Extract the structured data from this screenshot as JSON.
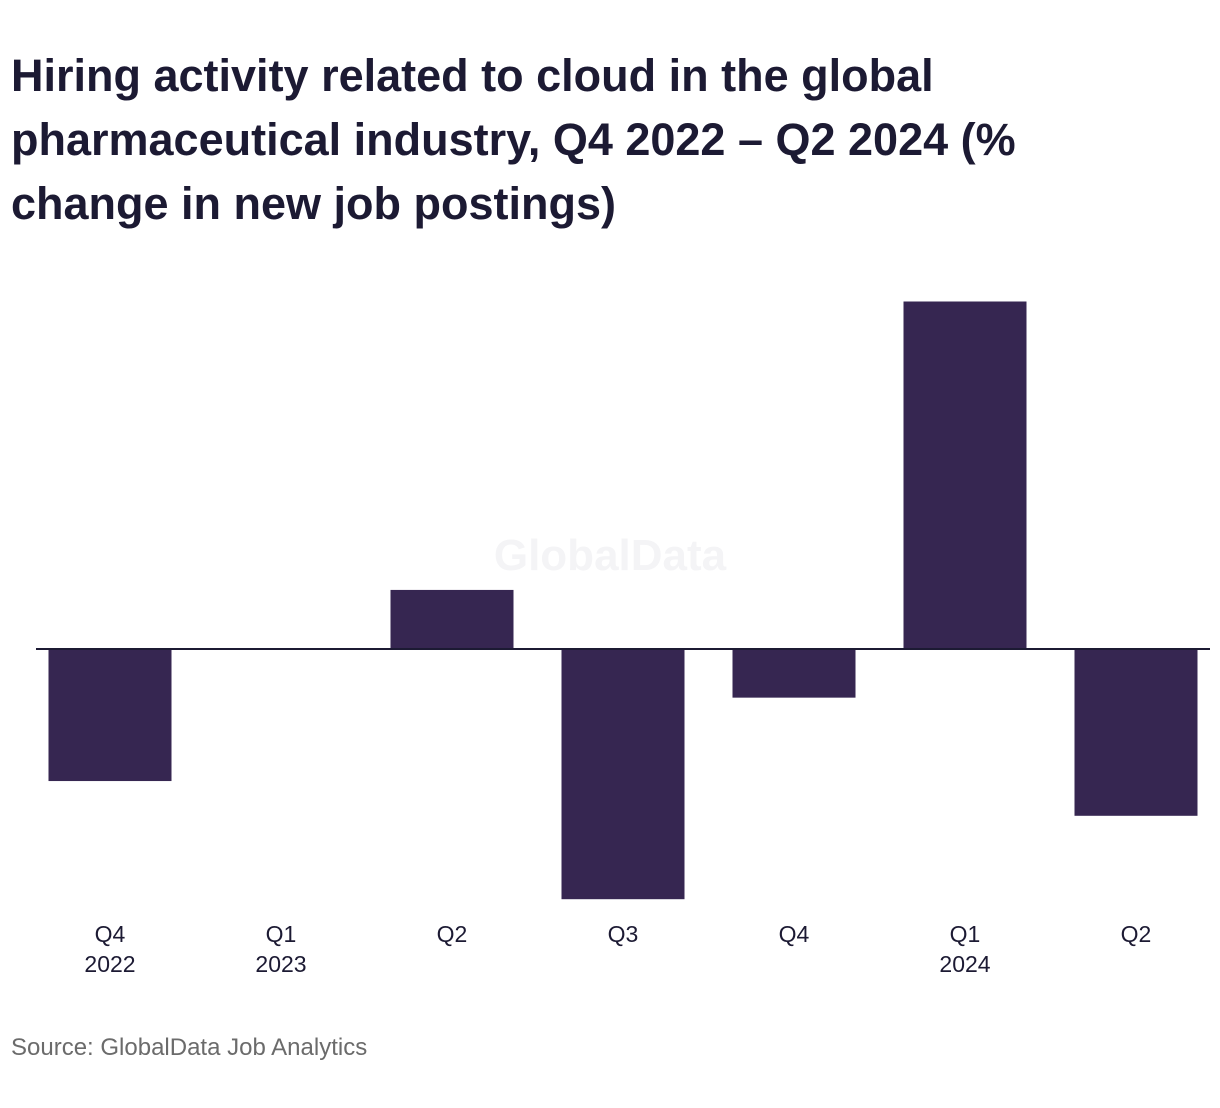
{
  "chart_data": {
    "type": "bar",
    "title": "Hiring activity related to cloud in the global pharmaceutical industry, Q4 2022 – Q2 2024 (% change in new job postings)",
    "categories": [
      {
        "quarter": "Q4",
        "year": "2022"
      },
      {
        "quarter": "Q1",
        "year": "2023"
      },
      {
        "quarter": "Q2",
        "year": ""
      },
      {
        "quarter": "Q3",
        "year": ""
      },
      {
        "quarter": "Q4",
        "year": ""
      },
      {
        "quarter": "Q1",
        "year": "2024"
      },
      {
        "quarter": "Q2",
        "year": ""
      }
    ],
    "values": [
      -19,
      0,
      8.5,
      -36,
      -7,
      50,
      -24
    ],
    "ylim": [
      -40,
      55
    ],
    "xlabel": "",
    "ylabel": "",
    "grid": false,
    "legend": "none",
    "bar_color": "#362651",
    "axis_color": "#1c1a33"
  },
  "watermark": "GlobalData",
  "source": "Source: GlobalData Job Analytics"
}
